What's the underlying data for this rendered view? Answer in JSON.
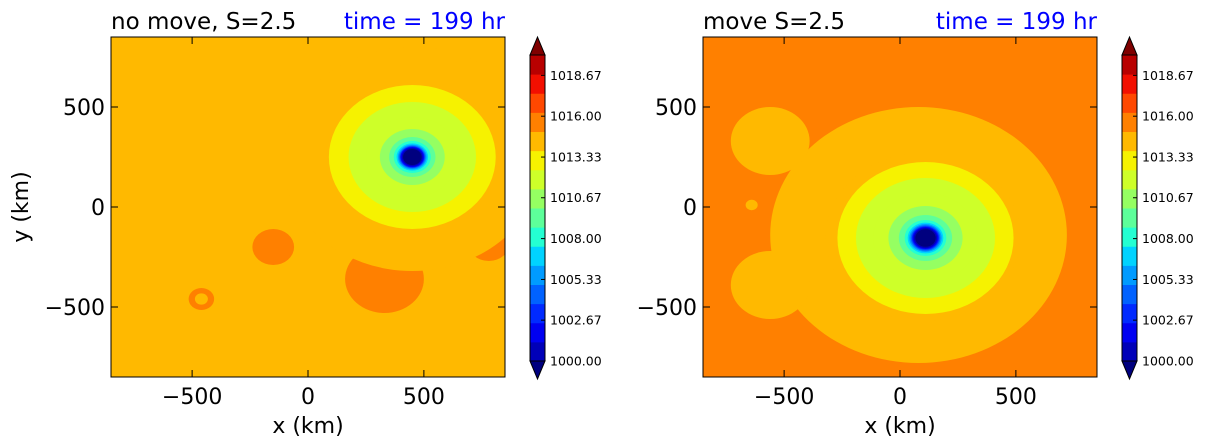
{
  "colors": {
    "jet": [
      "#00007f",
      "#0000b8",
      "#0000f1",
      "#002aff",
      "#0062ff",
      "#009bff",
      "#00d3ff",
      "#24ffd2",
      "#5dff9a",
      "#95ff62",
      "#ceff29",
      "#f6f200",
      "#ffb900",
      "#ff8000",
      "#ff4800",
      "#f20f00",
      "#b80000",
      "#7f0000"
    ],
    "title": "#000000",
    "time": "#0000ff"
  },
  "chart_data": [
    {
      "type": "heatmap",
      "title": "no move, S=2.5",
      "time_label": "time = 199 hr",
      "xlabel": "x (km)",
      "ylabel": "y (km)",
      "xlim": [
        -850,
        850
      ],
      "ylim": [
        -850,
        850
      ],
      "xticks": [
        {
          "value": -500,
          "label": "−500"
        },
        {
          "value": 0,
          "label": "0"
        },
        {
          "value": 500,
          "label": "500"
        }
      ],
      "yticks": [
        {
          "value": 500,
          "label": "500"
        },
        {
          "value": 0,
          "label": "0"
        },
        {
          "value": -500,
          "label": "−500"
        }
      ],
      "colorbar": {
        "min": 1000,
        "max": 1020,
        "ticks": [
          "1000.00",
          "1002.67",
          "1005.33",
          "1008.00",
          "1010.67",
          "1013.33",
          "1016.00",
          "1018.67"
        ],
        "extend": "both"
      },
      "background_level": 1014.6,
      "regions": [
        {
          "kind": "blob",
          "cx": 330,
          "cy": -360,
          "r": 170,
          "level": 1015.9
        },
        {
          "kind": "blob",
          "cx": -150,
          "cy": -200,
          "r": 90,
          "level": 1015.9
        },
        {
          "kind": "blob",
          "cx": 780,
          "cy": -180,
          "r": 90,
          "level": 1015.9
        },
        {
          "kind": "blob",
          "cx": -460,
          "cy": -460,
          "r": 55,
          "level": 1015.9
        },
        {
          "kind": "blob",
          "cx": -460,
          "cy": -460,
          "r": 28,
          "level": 1014.6
        },
        {
          "kind": "ring",
          "cx": 450,
          "cy": 240,
          "r": 560,
          "level": 1014.1
        },
        {
          "kind": "ring",
          "cx": 450,
          "cy": 250,
          "r": 360,
          "level": 1013.6
        },
        {
          "kind": "ring",
          "cx": 450,
          "cy": 250,
          "r": 275,
          "level": 1012.4
        },
        {
          "kind": "ring",
          "cx": 450,
          "cy": 250,
          "r": 200,
          "level": 1011.3
        },
        {
          "kind": "ring",
          "cx": 450,
          "cy": 250,
          "r": 140,
          "level": 1010.1
        },
        {
          "kind": "ring",
          "cx": 450,
          "cy": 250,
          "r": 100,
          "level": 1008.9
        },
        {
          "kind": "ring",
          "cx": 450,
          "cy": 250,
          "r": 80,
          "level": 1007.8
        },
        {
          "kind": "ring",
          "cx": 450,
          "cy": 250,
          "r": 68,
          "level": 1006.7
        },
        {
          "kind": "ring",
          "cx": 450,
          "cy": 250,
          "r": 62,
          "level": 1005.5
        },
        {
          "kind": "ring",
          "cx": 450,
          "cy": 250,
          "r": 57,
          "level": 1004.4
        },
        {
          "kind": "ring",
          "cx": 450,
          "cy": 250,
          "r": 53,
          "level": 1003.3
        },
        {
          "kind": "ring",
          "cx": 450,
          "cy": 250,
          "r": 50,
          "level": 1002.2
        },
        {
          "kind": "ring",
          "cx": 450,
          "cy": 250,
          "r": 45,
          "level": 1000.6
        },
        {
          "kind": "ring",
          "cx": 450,
          "cy": 250,
          "r": 40,
          "level": 999.5
        }
      ]
    },
    {
      "type": "heatmap",
      "title": "move S=2.5",
      "time_label": "time = 199 hr",
      "xlabel": "x (km)",
      "ylabel": "",
      "xlim": [
        -850,
        850
      ],
      "ylim": [
        -850,
        850
      ],
      "xticks": [
        {
          "value": -500,
          "label": "−500"
        },
        {
          "value": 0,
          "label": "0"
        },
        {
          "value": 500,
          "label": "500"
        }
      ],
      "yticks": [
        {
          "value": 500,
          "label": "500"
        },
        {
          "value": 0,
          "label": "0"
        },
        {
          "value": -500,
          "label": "−500"
        }
      ],
      "colorbar": {
        "min": 1000,
        "max": 1020,
        "ticks": [
          "1000.00",
          "1002.67",
          "1005.33",
          "1008.00",
          "1010.67",
          "1013.33",
          "1016.00",
          "1018.67"
        ],
        "extend": "both"
      },
      "background_level": 1015.9,
      "regions": [
        {
          "kind": "ring",
          "cx": 80,
          "cy": -140,
          "r": 640,
          "level": 1014.6
        },
        {
          "kind": "blob",
          "cx": -560,
          "cy": 330,
          "r": 170,
          "level": 1014.6
        },
        {
          "kind": "blob",
          "cx": -560,
          "cy": -390,
          "r": 170,
          "level": 1014.6
        },
        {
          "kind": "blob",
          "cx": -640,
          "cy": 10,
          "r": 60,
          "level": 1015.9
        },
        {
          "kind": "blob",
          "cx": -640,
          "cy": 10,
          "r": 26,
          "level": 1014.6
        },
        {
          "kind": "ring",
          "cx": 100,
          "cy": -150,
          "r": 420,
          "level": 1014.1
        },
        {
          "kind": "ring",
          "cx": 110,
          "cy": -155,
          "r": 380,
          "level": 1013.6
        },
        {
          "kind": "ring",
          "cx": 110,
          "cy": -155,
          "r": 300,
          "level": 1012.4
        },
        {
          "kind": "ring",
          "cx": 110,
          "cy": -155,
          "r": 225,
          "level": 1011.3
        },
        {
          "kind": "ring",
          "cx": 110,
          "cy": -155,
          "r": 160,
          "level": 1010.1
        },
        {
          "kind": "ring",
          "cx": 110,
          "cy": -155,
          "r": 115,
          "level": 1008.9
        },
        {
          "kind": "ring",
          "cx": 110,
          "cy": -155,
          "r": 90,
          "level": 1007.8
        },
        {
          "kind": "ring",
          "cx": 110,
          "cy": -155,
          "r": 77,
          "level": 1006.7
        },
        {
          "kind": "ring",
          "cx": 110,
          "cy": -155,
          "r": 70,
          "level": 1005.5
        },
        {
          "kind": "ring",
          "cx": 110,
          "cy": -155,
          "r": 64,
          "level": 1004.4
        },
        {
          "kind": "ring",
          "cx": 110,
          "cy": -155,
          "r": 59,
          "level": 1003.3
        },
        {
          "kind": "ring",
          "cx": 110,
          "cy": -155,
          "r": 55,
          "level": 1002.2
        },
        {
          "kind": "ring",
          "cx": 110,
          "cy": -155,
          "r": 50,
          "level": 1000.6
        },
        {
          "kind": "ring",
          "cx": 110,
          "cy": -155,
          "r": 44,
          "level": 999.5
        }
      ]
    }
  ]
}
